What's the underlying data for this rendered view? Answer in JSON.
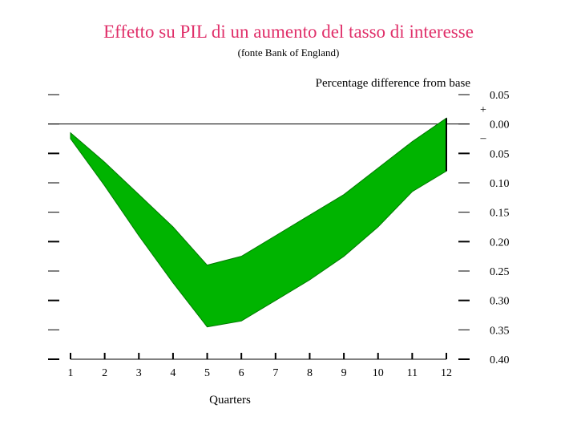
{
  "title": "Effetto su PIL di un aumento del tasso di interesse",
  "subtitle": "(fonte Bank of England)",
  "chart_data": {
    "type": "area",
    "title": "Effetto su PIL di un aumento del tasso di interesse",
    "ylabel": "Percentage difference from base",
    "xlabel": "Quarters",
    "x": [
      1,
      2,
      3,
      4,
      5,
      6,
      7,
      8,
      9,
      10,
      11,
      12
    ],
    "series": [
      {
        "values": [
          -0.015,
          -0.065,
          -0.12,
          -0.175,
          -0.24,
          -0.225,
          -0.19,
          -0.155,
          -0.12,
          -0.075,
          -0.03,
          0.01
        ]
      },
      {
        "values": [
          -0.025,
          -0.105,
          -0.19,
          -0.27,
          -0.345,
          -0.335,
          -0.3,
          -0.265,
          -0.225,
          -0.175,
          -0.115,
          -0.08
        ]
      }
    ],
    "band_color": "#00b400",
    "ylim": [
      -0.4,
      0.05
    ],
    "xlim": [
      1,
      12
    ],
    "yticks": [
      0.05,
      0.0,
      -0.05,
      -0.1,
      -0.15,
      -0.2,
      -0.25,
      -0.3,
      -0.35,
      -0.4
    ],
    "ytick_labels": [
      "0.05",
      "0.00",
      "0.05",
      "0.10",
      "0.15",
      "0.20",
      "0.25",
      "0.30",
      "0.35",
      "0.40"
    ],
    "xtick_labels": [
      "1",
      "2",
      "3",
      "4",
      "5",
      "6",
      "7",
      "8",
      "9",
      "10",
      "11",
      "12"
    ],
    "sign_plus": "+",
    "sign_minus": "–",
    "grid": false,
    "zero_line": true
  }
}
